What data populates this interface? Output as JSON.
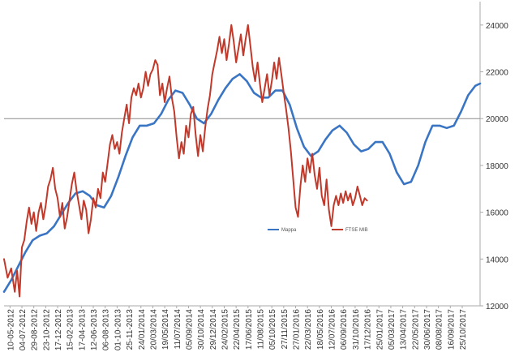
{
  "chart_data": {
    "type": "line",
    "x_tick_labels": [
      "10-05-2012",
      "04-07-2012",
      "29-08-2012",
      "23-10-2012",
      "17-12-2012",
      "15-02-2013",
      "17-04-2013",
      "12-06-2013",
      "06-08-2013",
      "01-10-2013",
      "25-11-2013",
      "24/01/2014",
      "20/03/2014",
      "19/05/2014",
      "11/07/2014",
      "05/09/2014",
      "30/10/2014",
      "29/12/2014",
      "24/02/2015",
      "22/04/2015",
      "17/06/2015",
      "11/08/2015",
      "05/10/2015",
      "27/11/2015",
      "27/01/2016",
      "22/03/2016",
      "18/05/2016",
      "12/07/2016",
      "06/09/2016",
      "31/10/2016",
      "17/12/2016",
      "25/01/2017",
      "05/03/2017",
      "13/04/2017",
      "22/05/2017",
      "30/06/2017",
      "08/08/2017",
      "16/09/2017",
      "25/10/2017"
    ],
    "y_axis": {
      "position": "right",
      "ylim": [
        12000,
        25000
      ],
      "ticks": [
        12000,
        14000,
        16000,
        18000,
        20000,
        22000,
        24000
      ]
    },
    "reference_line": 20000,
    "legend": {
      "placement": "center-right"
    },
    "series": [
      {
        "name": "Mappa",
        "color": "#3a75c4",
        "points": [
          [
            0,
            12600
          ],
          [
            0.6,
            13100
          ],
          [
            1.2,
            13700
          ],
          [
            1.8,
            14300
          ],
          [
            2.4,
            14800
          ],
          [
            3.0,
            15000
          ],
          [
            3.6,
            15100
          ],
          [
            4.2,
            15400
          ],
          [
            4.8,
            15900
          ],
          [
            5.4,
            16400
          ],
          [
            6.0,
            16800
          ],
          [
            6.6,
            16900
          ],
          [
            7.2,
            16700
          ],
          [
            7.8,
            16300
          ],
          [
            8.4,
            16200
          ],
          [
            9.0,
            16700
          ],
          [
            9.6,
            17500
          ],
          [
            10.2,
            18400
          ],
          [
            10.8,
            19200
          ],
          [
            11.4,
            19700
          ],
          [
            12.0,
            19700
          ],
          [
            12.6,
            19800
          ],
          [
            13.2,
            20200
          ],
          [
            13.8,
            20800
          ],
          [
            14.4,
            21200
          ],
          [
            15.0,
            21100
          ],
          [
            15.6,
            20600
          ],
          [
            16.2,
            20000
          ],
          [
            16.8,
            19800
          ],
          [
            17.4,
            20200
          ],
          [
            18.0,
            20800
          ],
          [
            18.6,
            21300
          ],
          [
            19.2,
            21700
          ],
          [
            19.8,
            21900
          ],
          [
            20.4,
            21600
          ],
          [
            21.0,
            21100
          ],
          [
            21.6,
            20900
          ],
          [
            22.2,
            20900
          ],
          [
            22.8,
            21200
          ],
          [
            23.4,
            21200
          ],
          [
            24.0,
            20600
          ],
          [
            24.6,
            19600
          ],
          [
            25.2,
            18800
          ],
          [
            25.8,
            18400
          ],
          [
            26.4,
            18600
          ],
          [
            27.0,
            19100
          ],
          [
            27.6,
            19500
          ],
          [
            28.2,
            19700
          ],
          [
            28.8,
            19400
          ],
          [
            29.4,
            18900
          ],
          [
            30.0,
            18600
          ],
          [
            30.6,
            18700
          ],
          [
            31.2,
            19000
          ],
          [
            31.8,
            19000
          ],
          [
            32.4,
            18500
          ],
          [
            33.0,
            17700
          ],
          [
            33.6,
            17200
          ],
          [
            34.2,
            17300
          ],
          [
            34.8,
            18000
          ],
          [
            35.4,
            19000
          ],
          [
            36.0,
            19700
          ],
          [
            36.6,
            19700
          ],
          [
            37.2,
            19600
          ],
          [
            37.8,
            19700
          ],
          [
            38.4,
            20300
          ],
          [
            39.0,
            21000
          ],
          [
            39.6,
            21400
          ],
          [
            40.0,
            21500
          ]
        ]
      },
      {
        "name": "FTSE MIB",
        "color": "#c0392b",
        "points": [
          [
            0,
            14000
          ],
          [
            0.3,
            13200
          ],
          [
            0.6,
            13600
          ],
          [
            0.9,
            12600
          ],
          [
            1.1,
            13500
          ],
          [
            1.3,
            12400
          ],
          [
            1.5,
            14500
          ],
          [
            1.7,
            14800
          ],
          [
            1.9,
            15600
          ],
          [
            2.1,
            16200
          ],
          [
            2.3,
            15500
          ],
          [
            2.5,
            16000
          ],
          [
            2.7,
            15200
          ],
          [
            2.9,
            16000
          ],
          [
            3.1,
            16400
          ],
          [
            3.3,
            15700
          ],
          [
            3.5,
            16300
          ],
          [
            3.7,
            17100
          ],
          [
            3.9,
            17400
          ],
          [
            4.1,
            17900
          ],
          [
            4.3,
            17000
          ],
          [
            4.5,
            16600
          ],
          [
            4.7,
            15800
          ],
          [
            4.9,
            16400
          ],
          [
            5.1,
            15300
          ],
          [
            5.3,
            15800
          ],
          [
            5.5,
            16500
          ],
          [
            5.7,
            17200
          ],
          [
            5.9,
            17700
          ],
          [
            6.1,
            16900
          ],
          [
            6.3,
            16300
          ],
          [
            6.5,
            15700
          ],
          [
            6.7,
            16500
          ],
          [
            6.9,
            16100
          ],
          [
            7.1,
            15100
          ],
          [
            7.3,
            15700
          ],
          [
            7.5,
            16600
          ],
          [
            7.7,
            16200
          ],
          [
            7.9,
            17000
          ],
          [
            8.1,
            16600
          ],
          [
            8.3,
            17700
          ],
          [
            8.5,
            17300
          ],
          [
            8.7,
            18100
          ],
          [
            8.9,
            18900
          ],
          [
            9.1,
            19300
          ],
          [
            9.3,
            18700
          ],
          [
            9.5,
            19000
          ],
          [
            9.7,
            18500
          ],
          [
            9.9,
            19400
          ],
          [
            10.1,
            20000
          ],
          [
            10.3,
            20600
          ],
          [
            10.5,
            19800
          ],
          [
            10.7,
            20900
          ],
          [
            10.9,
            21300
          ],
          [
            11.1,
            21000
          ],
          [
            11.3,
            21500
          ],
          [
            11.5,
            20900
          ],
          [
            11.7,
            21300
          ],
          [
            11.9,
            22000
          ],
          [
            12.1,
            21400
          ],
          [
            12.3,
            21900
          ],
          [
            12.5,
            22100
          ],
          [
            12.7,
            22500
          ],
          [
            12.9,
            22300
          ],
          [
            13.1,
            21000
          ],
          [
            13.3,
            21500
          ],
          [
            13.5,
            20700
          ],
          [
            13.7,
            21300
          ],
          [
            13.9,
            21800
          ],
          [
            14.1,
            20900
          ],
          [
            14.3,
            20300
          ],
          [
            14.5,
            19200
          ],
          [
            14.7,
            18300
          ],
          [
            14.9,
            19000
          ],
          [
            15.1,
            18500
          ],
          [
            15.3,
            19700
          ],
          [
            15.5,
            19200
          ],
          [
            15.7,
            20200
          ],
          [
            15.9,
            20500
          ],
          [
            16.1,
            19300
          ],
          [
            16.3,
            18400
          ],
          [
            16.5,
            19300
          ],
          [
            16.7,
            18600
          ],
          [
            16.9,
            19600
          ],
          [
            17.1,
            20400
          ],
          [
            17.3,
            21000
          ],
          [
            17.5,
            21900
          ],
          [
            17.7,
            22400
          ],
          [
            17.9,
            22900
          ],
          [
            18.1,
            23500
          ],
          [
            18.3,
            22800
          ],
          [
            18.5,
            23400
          ],
          [
            18.7,
            22500
          ],
          [
            18.9,
            23200
          ],
          [
            19.1,
            24000
          ],
          [
            19.3,
            23300
          ],
          [
            19.5,
            22400
          ],
          [
            19.7,
            23000
          ],
          [
            19.9,
            23600
          ],
          [
            20.1,
            22700
          ],
          [
            20.3,
            23400
          ],
          [
            20.5,
            24000
          ],
          [
            20.7,
            23100
          ],
          [
            20.9,
            22200
          ],
          [
            21.1,
            21600
          ],
          [
            21.3,
            22400
          ],
          [
            21.5,
            21500
          ],
          [
            21.7,
            20700
          ],
          [
            21.9,
            21300
          ],
          [
            22.1,
            21900
          ],
          [
            22.3,
            21000
          ],
          [
            22.5,
            21600
          ],
          [
            22.7,
            22400
          ],
          [
            22.9,
            21700
          ],
          [
            23.1,
            22600
          ],
          [
            23.3,
            21900
          ],
          [
            23.5,
            21100
          ],
          [
            23.7,
            20400
          ],
          [
            23.9,
            19600
          ],
          [
            24.1,
            18600
          ],
          [
            24.3,
            17400
          ],
          [
            24.5,
            16200
          ],
          [
            24.7,
            15800
          ],
          [
            24.9,
            17100
          ],
          [
            25.1,
            18000
          ],
          [
            25.3,
            17300
          ],
          [
            25.5,
            18300
          ],
          [
            25.7,
            17700
          ],
          [
            25.9,
            18500
          ],
          [
            26.1,
            17600
          ],
          [
            26.3,
            17000
          ],
          [
            26.5,
            17900
          ],
          [
            26.7,
            16700
          ],
          [
            26.9,
            16300
          ],
          [
            27.1,
            17400
          ],
          [
            27.3,
            16100
          ],
          [
            27.5,
            15400
          ],
          [
            27.7,
            16300
          ],
          [
            27.9,
            16700
          ],
          [
            28.1,
            16300
          ],
          [
            28.3,
            16800
          ],
          [
            28.5,
            16400
          ],
          [
            28.7,
            16900
          ],
          [
            28.9,
            16500
          ],
          [
            29.1,
            16800
          ],
          [
            29.3,
            16300
          ],
          [
            29.5,
            16600
          ],
          [
            29.7,
            17100
          ],
          [
            29.9,
            16700
          ],
          [
            30.1,
            16300
          ],
          [
            30.3,
            16600
          ],
          [
            30.5,
            16500
          ]
        ]
      }
    ]
  }
}
